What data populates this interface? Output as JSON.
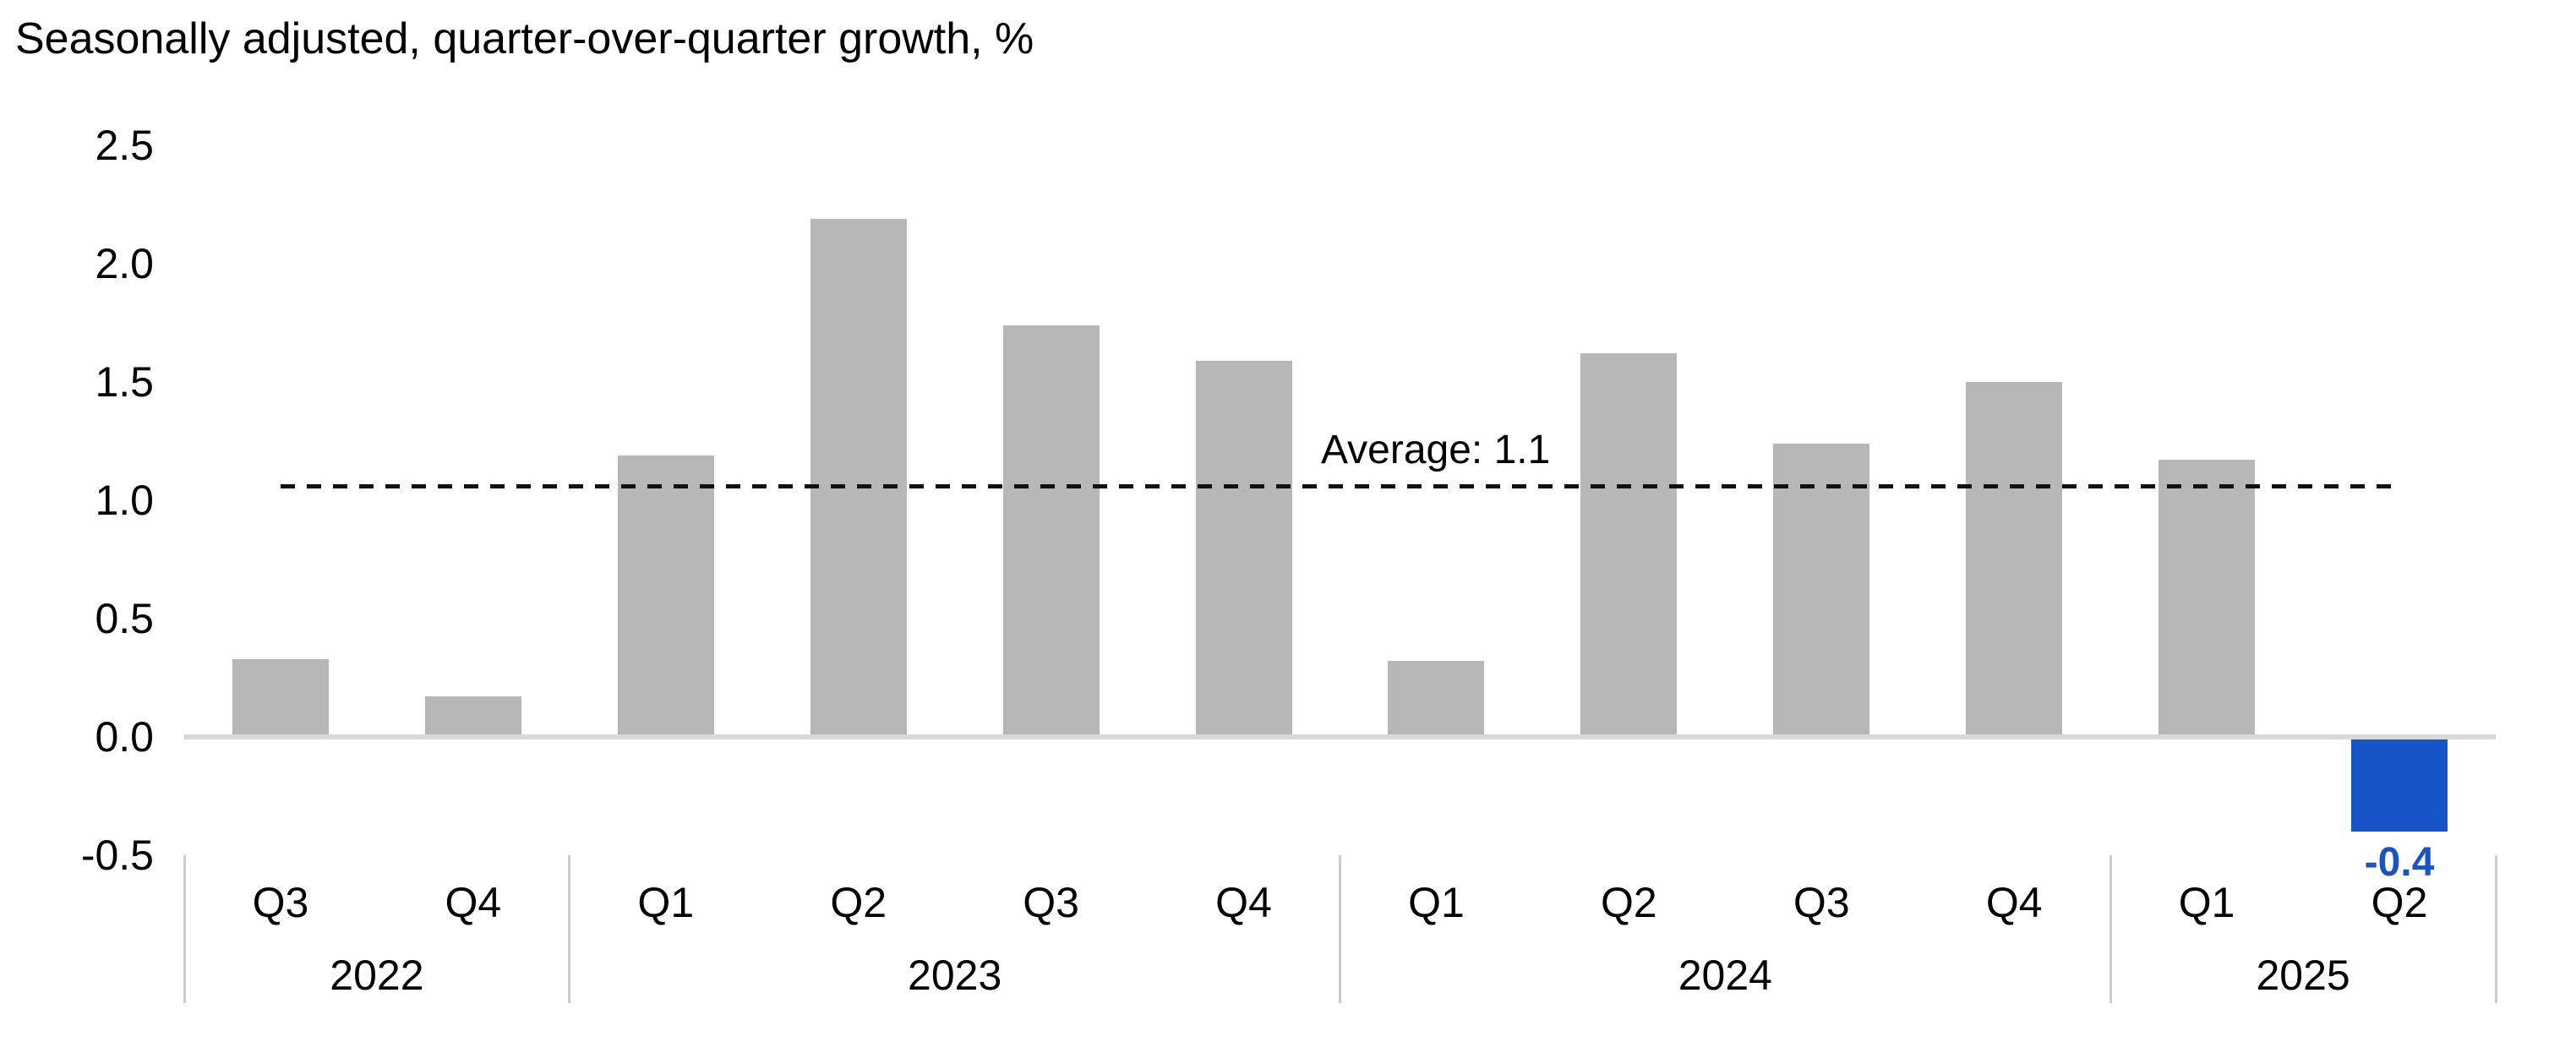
{
  "title": "Seasonally adjusted, quarter-over-quarter growth, %",
  "colors": {
    "bar_default": "#B7B7B7",
    "bar_highlight": "#1555C7",
    "highlight_text": "#1555C7",
    "baseline": "#D9D9D9",
    "separator": "#CCCCCC",
    "dashed_line": "#111111",
    "text": "#000000"
  },
  "chart_data": {
    "type": "bar",
    "title": "Seasonally adjusted, quarter-over-quarter growth, %",
    "xlabel": "",
    "ylabel": "",
    "ylim": [
      -0.5,
      2.5
    ],
    "y_ticks": [
      2.5,
      2.0,
      1.5,
      1.0,
      0.5,
      0.0,
      -0.5
    ],
    "y_tick_labels": [
      "2.5",
      "2.0",
      "1.5",
      "1.0",
      "0.5",
      "0.0",
      "-0.5"
    ],
    "grid": false,
    "legend": "none",
    "average_line": {
      "value": 1.06,
      "label": "Average:  1.1",
      "style": "dashed"
    },
    "groups": [
      {
        "year": "2022",
        "quarters": [
          "Q3",
          "Q4"
        ]
      },
      {
        "year": "2023",
        "quarters": [
          "Q1",
          "Q2",
          "Q3",
          "Q4"
        ]
      },
      {
        "year": "2024",
        "quarters": [
          "Q1",
          "Q2",
          "Q3",
          "Q4"
        ]
      },
      {
        "year": "2025",
        "quarters": [
          "Q1",
          "Q2"
        ]
      }
    ],
    "bars": [
      {
        "quarter": "Q3",
        "year": "2022",
        "value": 0.33
      },
      {
        "quarter": "Q4",
        "year": "2022",
        "value": 0.17
      },
      {
        "quarter": "Q1",
        "year": "2023",
        "value": 1.19
      },
      {
        "quarter": "Q2",
        "year": "2023",
        "value": 2.19
      },
      {
        "quarter": "Q3",
        "year": "2023",
        "value": 1.74
      },
      {
        "quarter": "Q4",
        "year": "2023",
        "value": 1.59
      },
      {
        "quarter": "Q1",
        "year": "2024",
        "value": 0.32
      },
      {
        "quarter": "Q2",
        "year": "2024",
        "value": 1.62
      },
      {
        "quarter": "Q3",
        "year": "2024",
        "value": 1.24
      },
      {
        "quarter": "Q4",
        "year": "2024",
        "value": 1.5
      },
      {
        "quarter": "Q1",
        "year": "2025",
        "value": 1.17
      },
      {
        "quarter": "Q2",
        "year": "2025",
        "value": -0.4,
        "highlight": true,
        "data_label": "-0.4"
      }
    ]
  }
}
